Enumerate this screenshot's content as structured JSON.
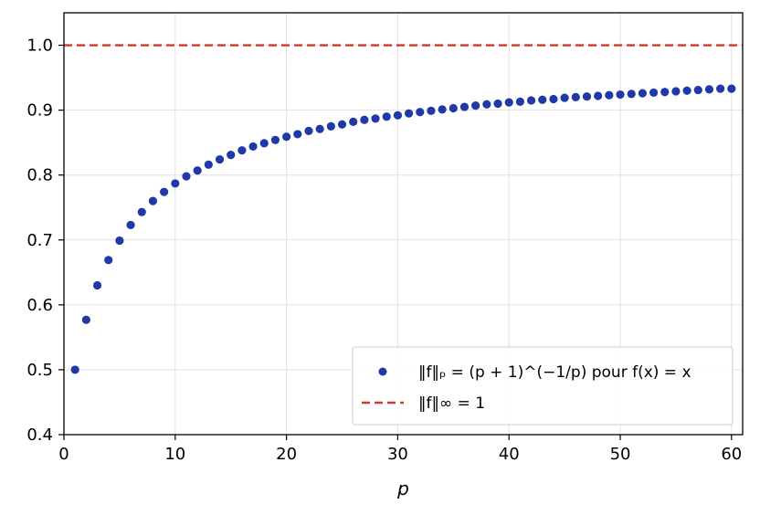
{
  "chart_data": {
    "type": "scatter",
    "title": "",
    "xlabel": "p",
    "ylabel": "",
    "xlim": [
      0,
      61
    ],
    "ylim": [
      0.4,
      1.05
    ],
    "xticks": [
      0,
      10,
      20,
      30,
      40,
      50,
      60
    ],
    "yticks": [
      0.4,
      0.5,
      0.6,
      0.7,
      0.8,
      0.9,
      1.0
    ],
    "xtick_labels": [
      "0",
      "10",
      "20",
      "30",
      "40",
      "50",
      "60"
    ],
    "ytick_labels": [
      "0.4",
      "0.5",
      "0.6",
      "0.7",
      "0.8",
      "0.9",
      "1.0"
    ],
    "grid": true,
    "legend_position": "lower-right",
    "series": [
      {
        "name": "‖f‖ₚ = (p + 1)^(−1/p) pour f(x) = x",
        "kind": "scatter",
        "color": "#2039a8",
        "x": [
          1,
          2,
          3,
          4,
          5,
          6,
          7,
          8,
          9,
          10,
          11,
          12,
          13,
          14,
          15,
          16,
          17,
          18,
          19,
          20,
          21,
          22,
          23,
          24,
          25,
          26,
          27,
          28,
          29,
          30,
          31,
          32,
          33,
          34,
          35,
          36,
          37,
          38,
          39,
          40,
          41,
          42,
          43,
          44,
          45,
          46,
          47,
          48,
          49,
          50,
          51,
          52,
          53,
          54,
          55,
          56,
          57,
          58,
          59,
          60
        ],
        "y": [
          0.5,
          0.577,
          0.63,
          0.669,
          0.699,
          0.723,
          0.743,
          0.76,
          0.774,
          0.787,
          0.798,
          0.807,
          0.816,
          0.824,
          0.831,
          0.838,
          0.844,
          0.849,
          0.854,
          0.859,
          0.863,
          0.868,
          0.871,
          0.875,
          0.878,
          0.882,
          0.885,
          0.887,
          0.89,
          0.892,
          0.895,
          0.897,
          0.899,
          0.901,
          0.903,
          0.905,
          0.907,
          0.909,
          0.91,
          0.912,
          0.913,
          0.915,
          0.916,
          0.917,
          0.919,
          0.92,
          0.921,
          0.922,
          0.923,
          0.924,
          0.925,
          0.926,
          0.927,
          0.928,
          0.929,
          0.93,
          0.931,
          0.932,
          0.933,
          0.933
        ]
      },
      {
        "name": "‖f‖∞ = 1",
        "kind": "hline",
        "color": "#d03a2a",
        "y": 1.0
      }
    ]
  }
}
